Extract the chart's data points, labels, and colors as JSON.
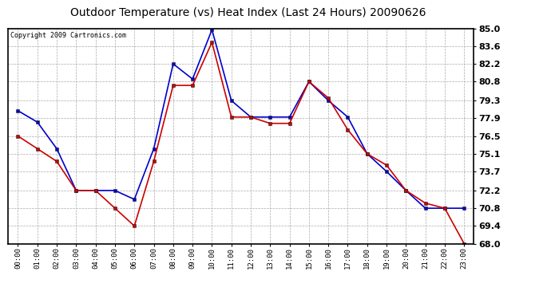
{
  "title": "Outdoor Temperature (vs) Heat Index (Last 24 Hours) 20090626",
  "copyright": "Copyright 2009 Cartronics.com",
  "hours": [
    "00:00",
    "01:00",
    "02:00",
    "03:00",
    "04:00",
    "05:00",
    "06:00",
    "07:00",
    "08:00",
    "09:00",
    "10:00",
    "11:00",
    "12:00",
    "13:00",
    "14:00",
    "15:00",
    "16:00",
    "17:00",
    "18:00",
    "19:00",
    "20:00",
    "21:00",
    "22:00",
    "23:00"
  ],
  "blue_temp": [
    78.5,
    77.6,
    75.5,
    72.2,
    72.2,
    72.2,
    71.5,
    75.5,
    82.2,
    81.0,
    84.9,
    79.3,
    78.0,
    78.0,
    78.0,
    80.8,
    79.3,
    78.0,
    75.1,
    73.7,
    72.2,
    70.8,
    70.8,
    70.8
  ],
  "red_heat": [
    76.5,
    75.5,
    74.5,
    72.2,
    72.2,
    70.8,
    69.4,
    74.5,
    80.5,
    80.5,
    83.9,
    78.0,
    78.0,
    77.5,
    77.5,
    80.8,
    79.5,
    77.0,
    75.1,
    74.2,
    72.2,
    71.2,
    70.8,
    68.0
  ],
  "ylim_min": 68.0,
  "ylim_max": 85.0,
  "ytick_values": [
    68.0,
    69.4,
    70.8,
    72.2,
    73.7,
    75.1,
    76.5,
    77.9,
    79.3,
    80.8,
    82.2,
    83.6,
    85.0
  ],
  "ytick_labels": [
    "68.0",
    "69.4",
    "70.8",
    "72.2",
    "73.7",
    "75.1",
    "76.5",
    "77.9",
    "79.3",
    "80.8",
    "82.2",
    "83.6",
    "85.0"
  ],
  "blue_color": "#0000cc",
  "red_color": "#cc0000",
  "bg_color": "#ffffff",
  "grid_color": "#aaaaaa",
  "title_fontsize": 10,
  "copyright_fontsize": 6,
  "xtick_fontsize": 6.5,
  "ytick_fontsize": 8
}
